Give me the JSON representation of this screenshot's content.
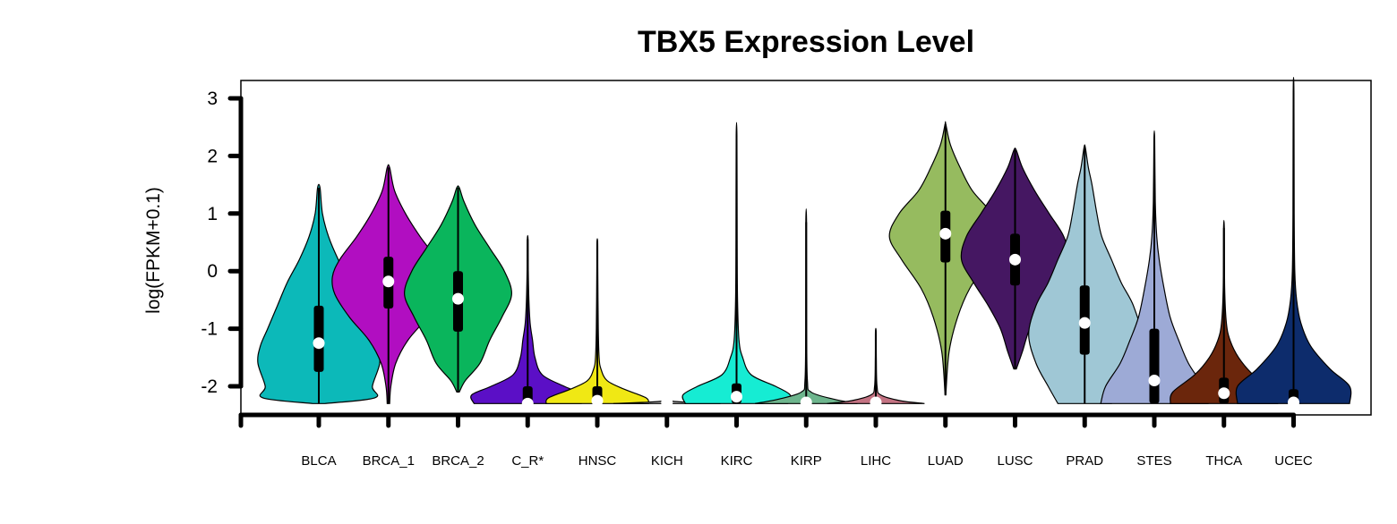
{
  "chart_data": {
    "type": "violin",
    "title": "TBX5 Expression Level",
    "xlabel": "",
    "ylabel": "log(FPKM+0.1)",
    "ylim": [
      -2.5,
      3.3
    ],
    "yticks": [
      3,
      2,
      1,
      0,
      -1,
      -2
    ],
    "grid": false,
    "categories": [
      "BLCA",
      "BRCA_1",
      "BRCA_2",
      "C_R*",
      "HNSC",
      "KICH",
      "KIRC",
      "KIRP",
      "LIHC",
      "LUAD",
      "LUSC",
      "PRAD",
      "STES",
      "THCA",
      "UCEC"
    ],
    "series": [
      {
        "category": "BLCA",
        "color": "#0cb9b9",
        "min": -2.3,
        "max": 1.45,
        "q1": -1.75,
        "median": -1.25,
        "q3": -0.6,
        "whisker_low": -2.3,
        "whisker_high": 1.05,
        "shape": [
          [
            -2.3,
            0.05
          ],
          [
            -2.2,
            0.46
          ],
          [
            -2.0,
            0.44
          ],
          [
            -1.6,
            0.5
          ],
          [
            -1.3,
            0.48
          ],
          [
            -1.0,
            0.42
          ],
          [
            -0.6,
            0.34
          ],
          [
            -0.2,
            0.26
          ],
          [
            0.2,
            0.16
          ],
          [
            0.6,
            0.08
          ],
          [
            1.0,
            0.03
          ],
          [
            1.45,
            0.01
          ]
        ]
      },
      {
        "category": "BRCA_1",
        "color": "#b10ec1",
        "min": -2.3,
        "max": 1.8,
        "q1": -0.65,
        "median": -0.18,
        "q3": 0.25,
        "whisker_low": -2.3,
        "whisker_high": 1.8,
        "shape": [
          [
            -2.3,
            0.01
          ],
          [
            -2.0,
            0.02
          ],
          [
            -1.6,
            0.06
          ],
          [
            -1.2,
            0.16
          ],
          [
            -0.8,
            0.32
          ],
          [
            -0.4,
            0.44
          ],
          [
            -0.1,
            0.46
          ],
          [
            0.2,
            0.4
          ],
          [
            0.6,
            0.26
          ],
          [
            1.0,
            0.14
          ],
          [
            1.4,
            0.05
          ],
          [
            1.8,
            0.01
          ]
        ]
      },
      {
        "category": "BRCA_2",
        "color": "#0ab55c",
        "min": -2.1,
        "max": 1.45,
        "q1": -1.05,
        "median": -0.48,
        "q3": 0.0,
        "whisker_low": -2.1,
        "whisker_high": 1.45,
        "shape": [
          [
            -2.1,
            0.01
          ],
          [
            -1.9,
            0.06
          ],
          [
            -1.6,
            0.18
          ],
          [
            -1.2,
            0.26
          ],
          [
            -0.8,
            0.36
          ],
          [
            -0.4,
            0.44
          ],
          [
            0.0,
            0.38
          ],
          [
            0.4,
            0.26
          ],
          [
            0.8,
            0.14
          ],
          [
            1.2,
            0.05
          ],
          [
            1.45,
            0.01
          ]
        ]
      },
      {
        "category": "C_R*",
        "color": "#5b0fc6",
        "min": -2.3,
        "max": 0.55,
        "q1": -2.3,
        "median": -2.3,
        "q3": -2.0,
        "whisker_low": -2.3,
        "whisker_high": -2.0,
        "shape": [
          [
            -2.3,
            0.44
          ],
          [
            -2.15,
            0.46
          ],
          [
            -2.0,
            0.3
          ],
          [
            -1.8,
            0.12
          ],
          [
            -1.5,
            0.06
          ],
          [
            -1.2,
            0.04
          ],
          [
            -0.9,
            0.02
          ],
          [
            -0.5,
            0.01
          ],
          [
            0.0,
            0.005
          ],
          [
            0.55,
            0.003
          ]
        ]
      },
      {
        "category": "HNSC",
        "color": "#f0e814",
        "min": -2.3,
        "max": 0.5,
        "q1": -2.3,
        "median": -2.25,
        "q3": -2.0,
        "whisker_low": -2.3,
        "whisker_high": -2.0,
        "shape": [
          [
            -2.3,
            0.42
          ],
          [
            -2.2,
            0.4
          ],
          [
            -2.05,
            0.22
          ],
          [
            -1.9,
            0.08
          ],
          [
            -1.7,
            0.03
          ],
          [
            -1.5,
            0.015
          ],
          [
            -1.0,
            0.008
          ],
          [
            0.0,
            0.004
          ],
          [
            0.5,
            0.003
          ]
        ]
      },
      {
        "category": "KICH",
        "color": "#b0b0b0",
        "min": -2.3,
        "max": -2.22,
        "q1": -2.3,
        "median": -2.28,
        "q3": -2.26,
        "whisker_low": -2.3,
        "whisker_high": -2.22,
        "shape": [
          [
            -2.3,
            0.44
          ],
          [
            -2.28,
            0.2
          ],
          [
            -2.26,
            0.05
          ],
          [
            -2.22,
            0.01
          ]
        ]
      },
      {
        "category": "KIRC",
        "color": "#16ecd3",
        "min": -2.3,
        "max": 2.35,
        "q1": -2.3,
        "median": -2.18,
        "q3": -1.95,
        "whisker_low": -2.3,
        "whisker_high": -1.5,
        "shape": [
          [
            -2.3,
            0.42
          ],
          [
            -2.15,
            0.44
          ],
          [
            -2.0,
            0.32
          ],
          [
            -1.8,
            0.12
          ],
          [
            -1.5,
            0.05
          ],
          [
            -1.2,
            0.02
          ],
          [
            -0.5,
            0.008
          ],
          [
            0.5,
            0.005
          ],
          [
            2.35,
            0.003
          ]
        ]
      },
      {
        "category": "KIRP",
        "color": "#6db58d",
        "min": -2.3,
        "max": 0.85,
        "q1": -2.3,
        "median": -2.28,
        "q3": -2.25,
        "whisker_low": -2.3,
        "whisker_high": -2.2,
        "shape": [
          [
            -2.3,
            0.42
          ],
          [
            -2.22,
            0.22
          ],
          [
            -2.1,
            0.04
          ],
          [
            -1.9,
            0.01
          ],
          [
            -1.0,
            0.004
          ],
          [
            0.85,
            0.003
          ]
        ]
      },
      {
        "category": "LIHC",
        "color": "#c47383",
        "min": -2.3,
        "max": -1.05,
        "q1": -2.3,
        "median": -2.28,
        "q3": -2.25,
        "whisker_low": -2.3,
        "whisker_high": -2.2,
        "shape": [
          [
            -2.3,
            0.4
          ],
          [
            -2.25,
            0.2
          ],
          [
            -2.15,
            0.04
          ],
          [
            -2.0,
            0.01
          ],
          [
            -1.5,
            0.004
          ],
          [
            -1.05,
            0.003
          ]
        ]
      },
      {
        "category": "LUAD",
        "color": "#96bb5f",
        "min": -2.15,
        "max": 2.55,
        "q1": 0.15,
        "median": 0.65,
        "q3": 1.05,
        "whisker_low": -1.2,
        "whisker_high": 2.55,
        "shape": [
          [
            -2.15,
            0.003
          ],
          [
            -1.4,
            0.03
          ],
          [
            -0.8,
            0.1
          ],
          [
            -0.3,
            0.2
          ],
          [
            0.2,
            0.36
          ],
          [
            0.6,
            0.46
          ],
          [
            1.0,
            0.38
          ],
          [
            1.4,
            0.22
          ],
          [
            1.8,
            0.12
          ],
          [
            2.2,
            0.04
          ],
          [
            2.55,
            0.003
          ]
        ]
      },
      {
        "category": "LUSC",
        "color": "#451762",
        "min": -1.7,
        "max": 2.1,
        "q1": -0.25,
        "median": 0.2,
        "q3": 0.65,
        "whisker_low": -1.6,
        "whisker_high": 2.0,
        "shape": [
          [
            -1.7,
            0.01
          ],
          [
            -1.4,
            0.06
          ],
          [
            -1.0,
            0.12
          ],
          [
            -0.6,
            0.22
          ],
          [
            -0.2,
            0.34
          ],
          [
            0.2,
            0.44
          ],
          [
            0.6,
            0.4
          ],
          [
            1.0,
            0.28
          ],
          [
            1.4,
            0.16
          ],
          [
            1.8,
            0.06
          ],
          [
            2.1,
            0.01
          ]
        ]
      },
      {
        "category": "PRAD",
        "color": "#9fc7d5",
        "min": -2.3,
        "max": 2.15,
        "q1": -1.45,
        "median": -0.9,
        "q3": -0.25,
        "whisker_low": -2.3,
        "whisker_high": 2.15,
        "shape": [
          [
            -2.3,
            0.22
          ],
          [
            -2.0,
            0.3
          ],
          [
            -1.6,
            0.4
          ],
          [
            -1.1,
            0.46
          ],
          [
            -0.6,
            0.4
          ],
          [
            -0.2,
            0.3
          ],
          [
            0.2,
            0.22
          ],
          [
            0.6,
            0.14
          ],
          [
            1.0,
            0.1
          ],
          [
            1.5,
            0.06
          ],
          [
            1.8,
            0.03
          ],
          [
            2.15,
            0.005
          ]
        ]
      },
      {
        "category": "STES",
        "color": "#9daad6",
        "min": -2.3,
        "max": 2.3,
        "q1": -2.3,
        "median": -1.9,
        "q3": -1.0,
        "whisker_low": -2.3,
        "whisker_high": 1.0,
        "shape": [
          [
            -2.3,
            0.44
          ],
          [
            -2.0,
            0.4
          ],
          [
            -1.6,
            0.28
          ],
          [
            -1.2,
            0.2
          ],
          [
            -0.8,
            0.13
          ],
          [
            -0.3,
            0.08
          ],
          [
            0.2,
            0.04
          ],
          [
            0.6,
            0.02
          ],
          [
            1.2,
            0.008
          ],
          [
            2.3,
            0.003
          ]
        ]
      },
      {
        "category": "THCA",
        "color": "#6b260c",
        "min": -2.3,
        "max": 0.75,
        "q1": -2.3,
        "median": -2.12,
        "q3": -1.85,
        "whisker_low": -2.3,
        "whisker_high": -1.0,
        "shape": [
          [
            -2.3,
            0.44
          ],
          [
            -2.1,
            0.42
          ],
          [
            -1.8,
            0.24
          ],
          [
            -1.5,
            0.12
          ],
          [
            -1.2,
            0.05
          ],
          [
            -0.9,
            0.02
          ],
          [
            -0.3,
            0.006
          ],
          [
            0.75,
            0.003
          ]
        ]
      },
      {
        "category": "UCEC",
        "color": "#0d2c6c",
        "min": -2.3,
        "max": 3.1,
        "q1": -2.3,
        "median": -2.28,
        "q3": -2.05,
        "whisker_low": -2.3,
        "whisker_high": -1.2,
        "shape": [
          [
            -2.3,
            0.46
          ],
          [
            -2.0,
            0.46
          ],
          [
            -1.7,
            0.3
          ],
          [
            -1.3,
            0.14
          ],
          [
            -0.9,
            0.06
          ],
          [
            -0.5,
            0.025
          ],
          [
            0.0,
            0.01
          ],
          [
            1.0,
            0.005
          ],
          [
            3.1,
            0.003
          ]
        ]
      }
    ]
  }
}
